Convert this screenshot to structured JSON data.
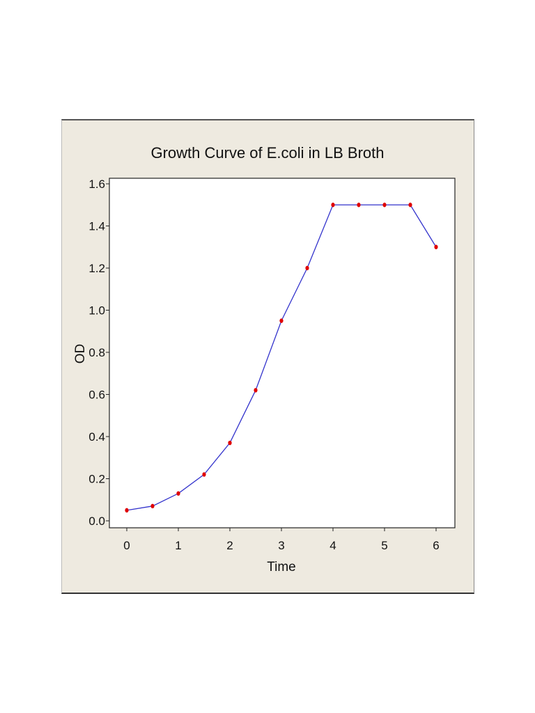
{
  "chart_data": {
    "type": "line",
    "title": "Growth Curve of E.coli in LB Broth",
    "xlabel": "Time",
    "ylabel": "OD",
    "x": [
      0,
      0.5,
      1,
      1.5,
      2,
      2.5,
      3,
      3.5,
      4,
      4.5,
      5,
      5.5,
      6
    ],
    "series": [
      {
        "name": "OD",
        "values": [
          0.05,
          0.07,
          0.13,
          0.22,
          0.37,
          0.62,
          0.95,
          1.2,
          1.5,
          1.5,
          1.5,
          1.5,
          1.3
        ],
        "line_color": "#3333cc",
        "marker_color": "#e00000"
      }
    ],
    "xticks": [
      "0",
      "1",
      "2",
      "3",
      "4",
      "5",
      "6"
    ],
    "yticks": [
      "0.0",
      "0.2",
      "0.4",
      "0.6",
      "0.8",
      "1.0",
      "1.2",
      "1.4",
      "1.6"
    ],
    "xlim": [
      -0.33,
      6.36
    ],
    "ylim": [
      -0.033,
      1.62
    ],
    "grid": false,
    "legend": null,
    "colors": {
      "panel_background": "#eeeae0",
      "plot_background": "#ffffff"
    }
  }
}
